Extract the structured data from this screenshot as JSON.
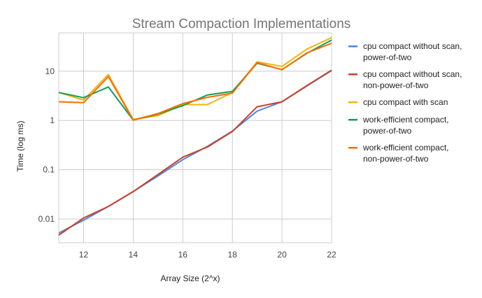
{
  "chart_data": {
    "type": "line",
    "title": "Stream Compaction Implementations",
    "xlabel": "Array Size (2^x)",
    "ylabel": "Time (log ms)",
    "x": [
      11,
      12,
      13,
      14,
      15,
      16,
      17,
      18,
      19,
      20,
      21,
      22
    ],
    "xlim": [
      11,
      22
    ],
    "xticks": [
      12,
      14,
      16,
      18,
      20,
      22
    ],
    "yscale": "log",
    "ylim": [
      0.0033,
      60
    ],
    "yticks": [
      0.01,
      0.1,
      1,
      10
    ],
    "ytick_labels": [
      "0.01",
      "0.1",
      "1",
      "10"
    ],
    "grid": true,
    "legend_position": "right",
    "series": [
      {
        "name": "cpu compact without scan, power-of-two",
        "color": "#4a86e8",
        "values": [
          0.0052,
          0.0095,
          0.018,
          0.036,
          0.075,
          0.16,
          0.3,
          0.61,
          1.55,
          2.4,
          5.0,
          10.3
        ]
      },
      {
        "name": "cpu compact without scan, non-power-of-two",
        "color": "#cc4125",
        "values": [
          0.0047,
          0.0105,
          0.018,
          0.036,
          0.08,
          0.18,
          0.29,
          0.6,
          1.9,
          2.4,
          5.1,
          10.5
        ]
      },
      {
        "name": "cpu compact with scan",
        "color": "#f1b50f",
        "values": [
          3.7,
          2.6,
          8.6,
          1.05,
          1.25,
          2.1,
          2.1,
          3.7,
          15.5,
          12.5,
          28.0,
          48.0
        ]
      },
      {
        "name": "work-efficient compact, power-of-two",
        "color": "#109d58",
        "values": [
          3.7,
          2.9,
          4.8,
          1.02,
          1.35,
          2.0,
          3.3,
          3.9,
          14.5,
          10.8,
          23.0,
          43.0
        ]
      },
      {
        "name": "work-efficient compact, non-power-of-two",
        "color": "#ff6d01",
        "values": [
          2.4,
          2.3,
          7.8,
          1.02,
          1.38,
          2.2,
          2.95,
          3.6,
          15.0,
          10.7,
          23.5,
          37.0
        ]
      }
    ]
  }
}
